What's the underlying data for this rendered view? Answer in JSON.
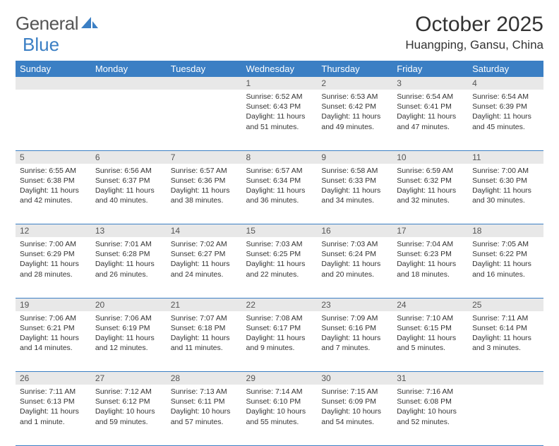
{
  "logo": {
    "text1": "General",
    "text2": "Blue"
  },
  "title": "October 2025",
  "location": "Huangping, Gansu, China",
  "colors": {
    "header_bg": "#3b7fc4",
    "header_text": "#ffffff",
    "daynum_bg": "#e8e8e8",
    "rule": "#3b7fc4",
    "logo_gray": "#555555",
    "logo_blue": "#3b7fc4"
  },
  "weekdays": [
    "Sunday",
    "Monday",
    "Tuesday",
    "Wednesday",
    "Thursday",
    "Friday",
    "Saturday"
  ],
  "weeks": [
    [
      null,
      null,
      null,
      {
        "n": "1",
        "sr": "6:52 AM",
        "ss": "6:43 PM",
        "dl": "11 hours and 51 minutes."
      },
      {
        "n": "2",
        "sr": "6:53 AM",
        "ss": "6:42 PM",
        "dl": "11 hours and 49 minutes."
      },
      {
        "n": "3",
        "sr": "6:54 AM",
        "ss": "6:41 PM",
        "dl": "11 hours and 47 minutes."
      },
      {
        "n": "4",
        "sr": "6:54 AM",
        "ss": "6:39 PM",
        "dl": "11 hours and 45 minutes."
      }
    ],
    [
      {
        "n": "5",
        "sr": "6:55 AM",
        "ss": "6:38 PM",
        "dl": "11 hours and 42 minutes."
      },
      {
        "n": "6",
        "sr": "6:56 AM",
        "ss": "6:37 PM",
        "dl": "11 hours and 40 minutes."
      },
      {
        "n": "7",
        "sr": "6:57 AM",
        "ss": "6:36 PM",
        "dl": "11 hours and 38 minutes."
      },
      {
        "n": "8",
        "sr": "6:57 AM",
        "ss": "6:34 PM",
        "dl": "11 hours and 36 minutes."
      },
      {
        "n": "9",
        "sr": "6:58 AM",
        "ss": "6:33 PM",
        "dl": "11 hours and 34 minutes."
      },
      {
        "n": "10",
        "sr": "6:59 AM",
        "ss": "6:32 PM",
        "dl": "11 hours and 32 minutes."
      },
      {
        "n": "11",
        "sr": "7:00 AM",
        "ss": "6:30 PM",
        "dl": "11 hours and 30 minutes."
      }
    ],
    [
      {
        "n": "12",
        "sr": "7:00 AM",
        "ss": "6:29 PM",
        "dl": "11 hours and 28 minutes."
      },
      {
        "n": "13",
        "sr": "7:01 AM",
        "ss": "6:28 PM",
        "dl": "11 hours and 26 minutes."
      },
      {
        "n": "14",
        "sr": "7:02 AM",
        "ss": "6:27 PM",
        "dl": "11 hours and 24 minutes."
      },
      {
        "n": "15",
        "sr": "7:03 AM",
        "ss": "6:25 PM",
        "dl": "11 hours and 22 minutes."
      },
      {
        "n": "16",
        "sr": "7:03 AM",
        "ss": "6:24 PM",
        "dl": "11 hours and 20 minutes."
      },
      {
        "n": "17",
        "sr": "7:04 AM",
        "ss": "6:23 PM",
        "dl": "11 hours and 18 minutes."
      },
      {
        "n": "18",
        "sr": "7:05 AM",
        "ss": "6:22 PM",
        "dl": "11 hours and 16 minutes."
      }
    ],
    [
      {
        "n": "19",
        "sr": "7:06 AM",
        "ss": "6:21 PM",
        "dl": "11 hours and 14 minutes."
      },
      {
        "n": "20",
        "sr": "7:06 AM",
        "ss": "6:19 PM",
        "dl": "11 hours and 12 minutes."
      },
      {
        "n": "21",
        "sr": "7:07 AM",
        "ss": "6:18 PM",
        "dl": "11 hours and 11 minutes."
      },
      {
        "n": "22",
        "sr": "7:08 AM",
        "ss": "6:17 PM",
        "dl": "11 hours and 9 minutes."
      },
      {
        "n": "23",
        "sr": "7:09 AM",
        "ss": "6:16 PM",
        "dl": "11 hours and 7 minutes."
      },
      {
        "n": "24",
        "sr": "7:10 AM",
        "ss": "6:15 PM",
        "dl": "11 hours and 5 minutes."
      },
      {
        "n": "25",
        "sr": "7:11 AM",
        "ss": "6:14 PM",
        "dl": "11 hours and 3 minutes."
      }
    ],
    [
      {
        "n": "26",
        "sr": "7:11 AM",
        "ss": "6:13 PM",
        "dl": "11 hours and 1 minute."
      },
      {
        "n": "27",
        "sr": "7:12 AM",
        "ss": "6:12 PM",
        "dl": "10 hours and 59 minutes."
      },
      {
        "n": "28",
        "sr": "7:13 AM",
        "ss": "6:11 PM",
        "dl": "10 hours and 57 minutes."
      },
      {
        "n": "29",
        "sr": "7:14 AM",
        "ss": "6:10 PM",
        "dl": "10 hours and 55 minutes."
      },
      {
        "n": "30",
        "sr": "7:15 AM",
        "ss": "6:09 PM",
        "dl": "10 hours and 54 minutes."
      },
      {
        "n": "31",
        "sr": "7:16 AM",
        "ss": "6:08 PM",
        "dl": "10 hours and 52 minutes."
      },
      null
    ]
  ],
  "labels": {
    "sunrise": "Sunrise:",
    "sunset": "Sunset:",
    "daylight": "Daylight:"
  }
}
